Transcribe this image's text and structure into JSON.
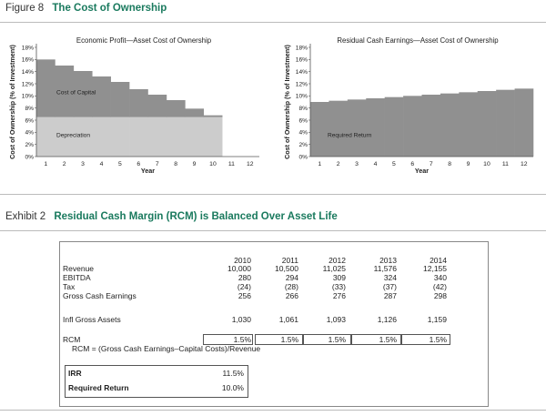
{
  "figure": {
    "number": "Figure 8",
    "title": "The Cost of Ownership"
  },
  "exhibit": {
    "number": "Exhibit 2",
    "title": "Residual Cash Margin (RCM) is Balanced Over Asset Life"
  },
  "chart_data": [
    {
      "type": "area",
      "title": "Economic Profit—Asset Cost of Ownership",
      "xlabel": "Year",
      "ylabel": "Cost of Ownership (% of Investment)",
      "x": [
        1,
        2,
        3,
        4,
        5,
        6,
        7,
        8,
        9,
        10,
        11,
        12
      ],
      "ylim": [
        0,
        18
      ],
      "yticks": [
        "0%",
        "2%",
        "4%",
        "6%",
        "8%",
        "10%",
        "12%",
        "14%",
        "16%",
        "18%"
      ],
      "series": [
        {
          "name": "Depreciation",
          "values": [
            6.5,
            6.5,
            6.5,
            6.5,
            6.5,
            6.5,
            6.5,
            6.5,
            6.5,
            6.5,
            0,
            0
          ]
        },
        {
          "name": "Cost of Capital",
          "values": [
            9.5,
            8.5,
            7.6,
            6.7,
            5.8,
            4.6,
            3.7,
            2.8,
            1.4,
            0.3,
            0,
            0
          ]
        }
      ],
      "annotations": [
        "Cost of Capital",
        "Depreciation"
      ],
      "grid": false
    },
    {
      "type": "area",
      "title": "Residual Cash Earnings—Asset Cost of Ownership",
      "xlabel": "Year",
      "ylabel": "Cost of Ownership (% of Investment)",
      "x": [
        1,
        2,
        3,
        4,
        5,
        6,
        7,
        8,
        9,
        10,
        11,
        12
      ],
      "ylim": [
        0,
        18
      ],
      "yticks": [
        "0%",
        "2%",
        "4%",
        "6%",
        "8%",
        "10%",
        "12%",
        "14%",
        "16%",
        "18%"
      ],
      "series": [
        {
          "name": "Required Return",
          "values": [
            9.0,
            9.2,
            9.4,
            9.6,
            9.8,
            10.0,
            10.2,
            10.4,
            10.6,
            10.8,
            11.0,
            11.2
          ]
        }
      ],
      "annotations": [
        "Required Return"
      ],
      "grid": false
    },
    {
      "type": "table",
      "columns": [
        "2010",
        "2011",
        "2012",
        "2013",
        "2014"
      ],
      "rows": [
        {
          "label": "Revenue",
          "values": [
            "10,000",
            "10,500",
            "11,025",
            "11,576",
            "12,155"
          ]
        },
        {
          "label": "EBITDA",
          "values": [
            "280",
            "294",
            "309",
            "324",
            "340"
          ]
        },
        {
          "label": "Tax",
          "values": [
            "(24)",
            "(28)",
            "(33)",
            "(37)",
            "(42)"
          ]
        },
        {
          "label": "Gross Cash Earnings",
          "values": [
            "256",
            "266",
            "276",
            "287",
            "298"
          ]
        },
        {
          "label": "Infl Gross Assets",
          "values": [
            "1,030",
            "1,061",
            "1,093",
            "1,126",
            "1,159"
          ]
        },
        {
          "label": "RCM",
          "values": [
            "1.5%",
            "1.5%",
            "1.5%",
            "1.5%",
            "1.5%"
          ]
        }
      ],
      "rcm_formula": "RCM = (Gross Cash Earnings–Capital Costs)/Revenue",
      "summary": [
        {
          "label": "IRR",
          "value": "11.5%"
        },
        {
          "label": "Required Return",
          "value": "10.0%"
        }
      ]
    }
  ]
}
